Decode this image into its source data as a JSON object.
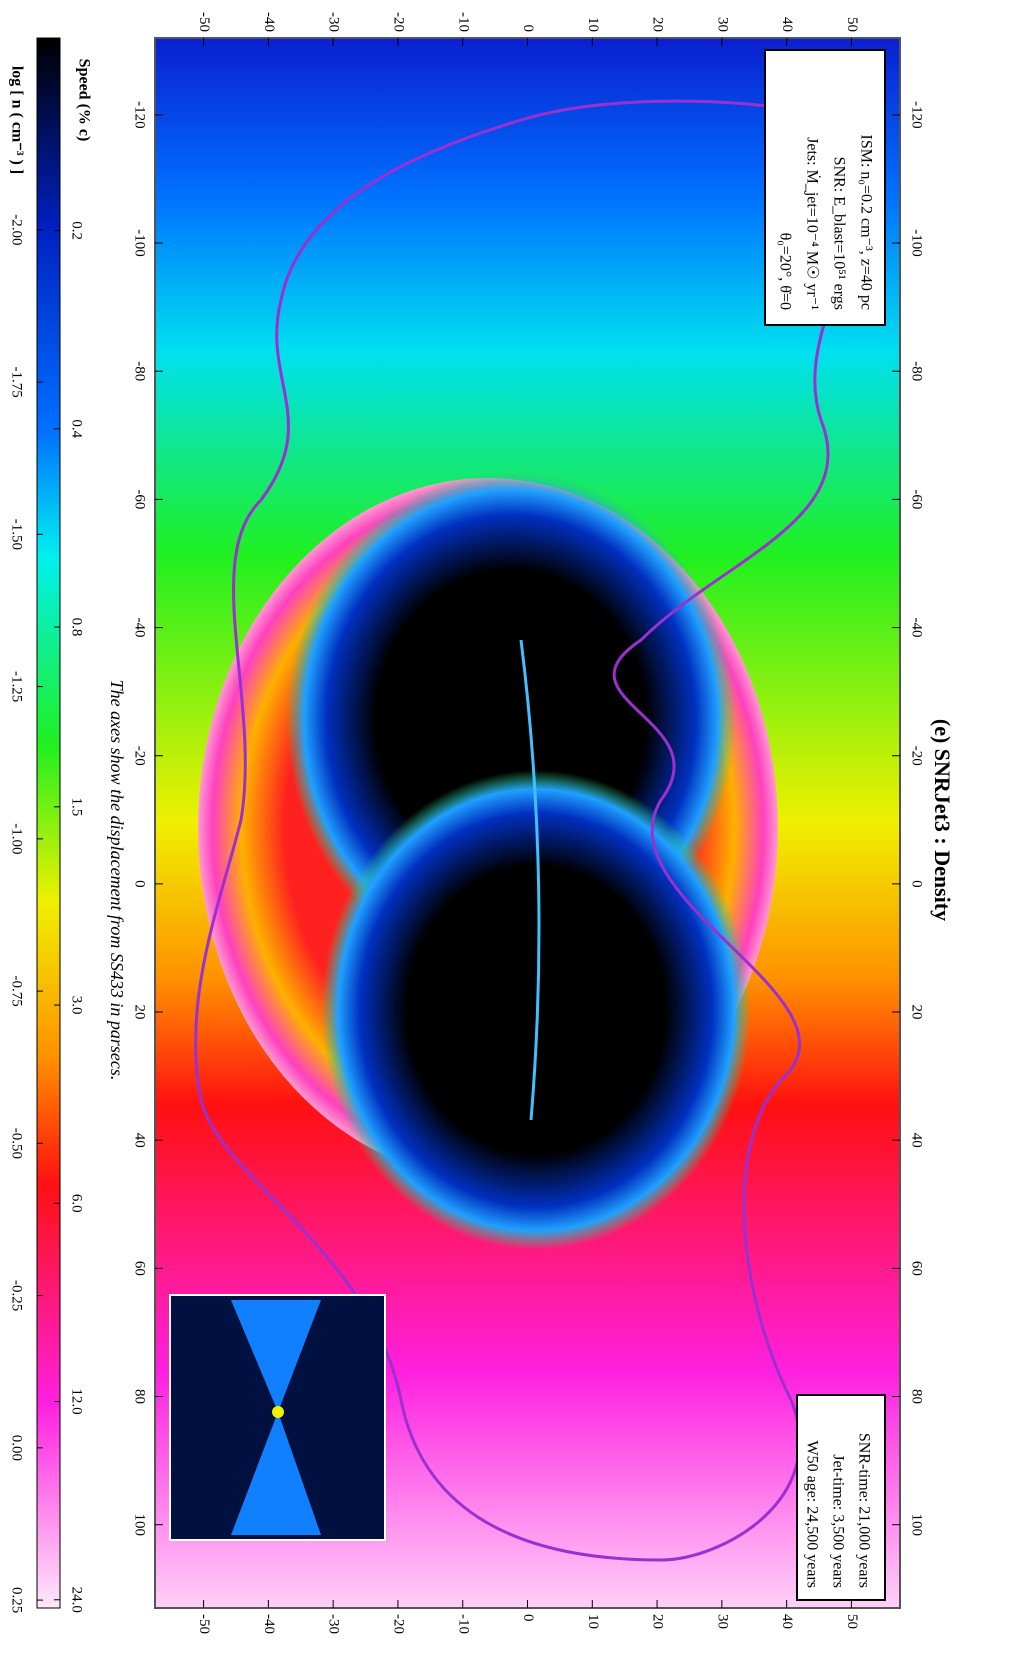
{
  "chart_data": {
    "type": "heatmap",
    "title": "(e) SNRJet3 : Density",
    "caption": "The axes show the displacement from SS433 in parsecs.",
    "xlim": [
      -132,
      113
    ],
    "xticks": [
      -120,
      -100,
      -80,
      -60,
      -40,
      -20,
      0,
      20,
      40,
      60,
      80,
      100
    ],
    "ylim": [
      -57.5,
      57.5
    ],
    "yticks": [
      -50,
      -40,
      -30,
      -20,
      -10,
      0,
      10,
      20,
      30,
      40,
      50
    ],
    "colorbar": {
      "label": "log [ n ( cm⁻³ ) ]",
      "lim": [
        -2.315,
        0.263
      ],
      "ticks": [
        {
          "value": -2,
          "label": "-2.00"
        },
        {
          "value": -1.75,
          "label": "-1.75"
        },
        {
          "value": -1.5,
          "label": "-1.50"
        },
        {
          "value": -1.25,
          "label": "-1.25"
        },
        {
          "value": -1,
          "label": "-1.00"
        },
        {
          "value": -0.75,
          "label": "-0.75"
        },
        {
          "value": -0.5,
          "label": "-0.50"
        },
        {
          "value": -0.25,
          "label": "-0.25"
        },
        {
          "value": 0,
          "label": "0.00"
        },
        {
          "value": 0.25,
          "label": "0.25"
        }
      ]
    },
    "speed_axis": {
      "label": "Speed (% c)",
      "lim": [
        0.102,
        24.7
      ],
      "log": true,
      "ticks": [
        0.2,
        0.4,
        0.8,
        1.5,
        {
          "value": 3,
          "label": "3.0"
        },
        {
          "value": 6,
          "label": "6.0"
        },
        {
          "value": 12,
          "label": "12.0"
        },
        {
          "value": 24,
          "label": "24.0"
        }
      ]
    },
    "annotations": {
      "parameters": [
        "ISM: n₀=0.2 cm⁻³, z=40 pc",
        "SNR: E_blast=10⁵¹ ergs",
        "Jets: Ṁ_jet=10⁻⁴ M☉ yr⁻¹",
        "θ₀=20°, θ̇=0"
      ],
      "times": [
        "SNR-time: 21,000 years",
        "Jet-time: 3,500 years",
        "W50 age: 24,500 years"
      ]
    }
  }
}
